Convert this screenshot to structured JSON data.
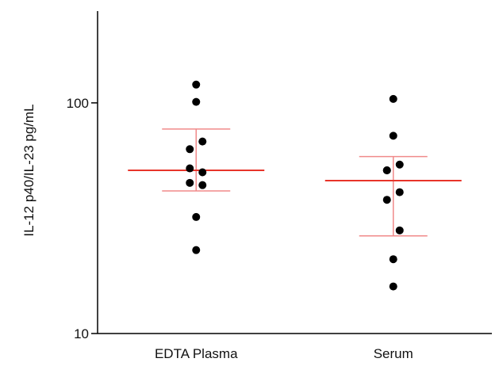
{
  "chart_data": {
    "type": "scatter",
    "title": "",
    "ylabel": "IL-12 p40/IL-23 pg/mL",
    "xlabel": "",
    "yscale": "log",
    "ylim": [
      10,
      250
    ],
    "grid": false,
    "y_ticks": [
      {
        "value": 10,
        "label": "10"
      },
      {
        "value": 100,
        "label": "100"
      }
    ],
    "categories": [
      "EDTA Plasma",
      "Serum"
    ],
    "groups": [
      {
        "category": "EDTA Plasma",
        "values": [
          120,
          101,
          68,
          63,
          52,
          50,
          45,
          44,
          32,
          23
        ],
        "mean": 51,
        "error_upper": 77,
        "error_lower": 41.5
      },
      {
        "category": "Serum",
        "values": [
          104,
          72,
          54,
          51,
          51,
          41,
          38,
          28,
          21,
          16
        ],
        "mean": 46,
        "error_upper": 58.5,
        "error_lower": 26.5
      }
    ],
    "colors": {
      "points": "#000000",
      "mean_line": "#e8342a",
      "error_bar": "#f08a8a",
      "axis": "#000000"
    }
  }
}
